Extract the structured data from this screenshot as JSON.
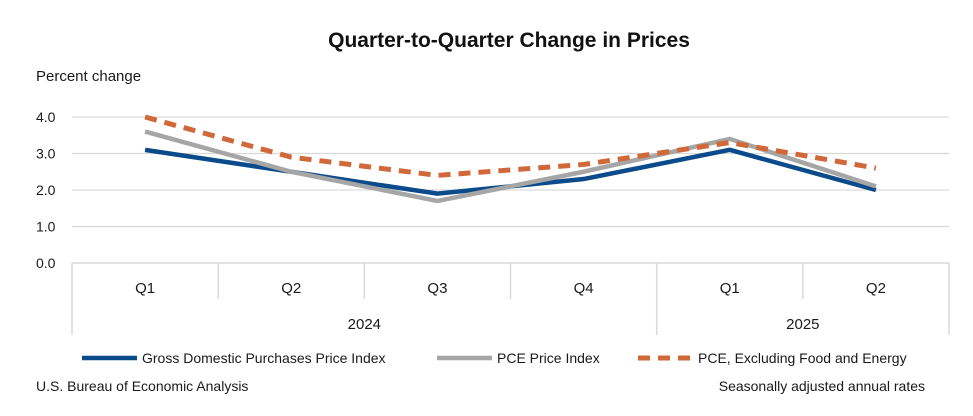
{
  "chart_data": {
    "type": "line",
    "title": "Quarter-to-Quarter Change in Prices",
    "ylabel": "Percent change",
    "xlabel": "",
    "ylim": [
      0,
      4
    ],
    "yticks": [
      "0.0",
      "1.0",
      "2.0",
      "3.0",
      "4.0"
    ],
    "ytick_values": [
      0,
      1,
      2,
      3,
      4
    ],
    "grid": true,
    "categories": [
      "Q1",
      "Q2",
      "Q3",
      "Q4",
      "Q1",
      "Q2"
    ],
    "groups": [
      {
        "label": "2024",
        "count": 4
      },
      {
        "label": "2025",
        "count": 2
      }
    ],
    "series": [
      {
        "name": "Gross Domestic Purchases Price Index",
        "color": "#0b4a8b",
        "style": "solid",
        "values": [
          3.1,
          2.5,
          1.9,
          2.3,
          3.1,
          2.0
        ]
      },
      {
        "name": "PCE Price Index",
        "color": "#a6a6a6",
        "style": "solid",
        "values": [
          3.6,
          2.5,
          1.7,
          2.5,
          3.4,
          2.1
        ]
      },
      {
        "name": "PCE, Excluding Food and Energy",
        "color": "#d0683a",
        "style": "dashed",
        "values": [
          4.0,
          2.9,
          2.4,
          2.7,
          3.3,
          2.6
        ]
      }
    ],
    "legend_position": "bottom",
    "source": "U.S. Bureau of Economic Analysis",
    "note": "Seasonally adjusted annual rates"
  }
}
